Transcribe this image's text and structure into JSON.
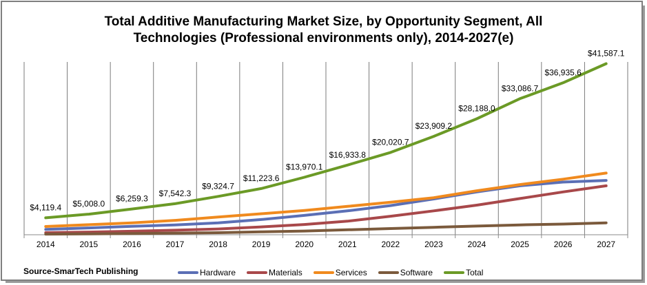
{
  "chart_data": {
    "type": "line",
    "title_line1": "Total Additive Manufacturing Market Size, by Opportunity Segment, All",
    "title_line2": "Technologies (Professional environments only), 2014-2027(e)",
    "source": "Source-SmarTech Publishing",
    "grid": "vertical",
    "legend_position": "bottom",
    "ylim": [
      0,
      42000
    ],
    "categories": [
      "2014",
      "2015",
      "2016",
      "2017",
      "2018",
      "2019",
      "2020",
      "2021",
      "2022",
      "2023",
      "2024",
      "2025",
      "2026",
      "2027"
    ],
    "series": [
      {
        "name": "Hardware",
        "color": "#5b6fb5",
        "values": [
          1300,
          1650,
          2050,
          2400,
          2900,
          3700,
          4700,
          5800,
          7100,
          8700,
          10400,
          11900,
          12800,
          13200
        ]
      },
      {
        "name": "Materials",
        "color": "#a8484a",
        "values": [
          500,
          650,
          850,
          1100,
          1400,
          1900,
          2500,
          3300,
          4500,
          5800,
          7200,
          8800,
          10400,
          11900
        ]
      },
      {
        "name": "Services",
        "color": "#f08a1e",
        "values": [
          2000,
          2450,
          2900,
          3500,
          4300,
          5100,
          5900,
          6900,
          7900,
          9000,
          10700,
          12200,
          13500,
          15000
        ]
      },
      {
        "name": "Software",
        "color": "#7b5a3c",
        "values": [
          150,
          200,
          300,
          400,
          500,
          700,
          900,
          1200,
          1500,
          1800,
          2100,
          2400,
          2600,
          2900
        ]
      },
      {
        "name": "Total",
        "color": "#6b9a26",
        "values": [
          4119.4,
          5008.0,
          6259.3,
          7542.3,
          9324.7,
          11223.6,
          13970.1,
          16933.8,
          20020.7,
          23909.2,
          28188.0,
          33086.7,
          36935.6,
          41587.1
        ]
      }
    ],
    "data_labels": [
      "$4,119.4",
      "$5,008.0",
      "$6,259.3",
      "$7,542.3",
      "$9,324.7",
      "$11,223.6",
      "$13,970.1",
      "$16,933.8",
      "$20,020.7",
      "$23,909.2",
      "$28,188.0",
      "$33,086.7",
      "$36,935.6",
      "$41,587.1"
    ]
  }
}
